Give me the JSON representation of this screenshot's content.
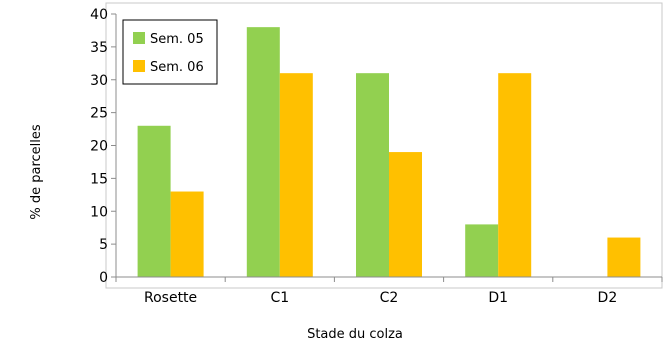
{
  "chart_data": {
    "type": "bar",
    "title": "",
    "xlabel": "Stade du colza",
    "ylabel": "% de parcelles",
    "categories": [
      "Rosette",
      "C1",
      "C2",
      "D1",
      "D2"
    ],
    "series": [
      {
        "name": "Sem. 05",
        "color": "#92d050",
        "values": [
          23,
          38,
          31,
          8,
          0
        ]
      },
      {
        "name": "Sem. 06",
        "color": "#ffc000",
        "values": [
          13,
          31,
          19,
          31,
          6
        ]
      }
    ],
    "ylim": [
      0,
      40
    ],
    "yticks": [
      0,
      5,
      10,
      15,
      20,
      25,
      30,
      35,
      40
    ],
    "grid": false,
    "legend_position": "top-left"
  }
}
